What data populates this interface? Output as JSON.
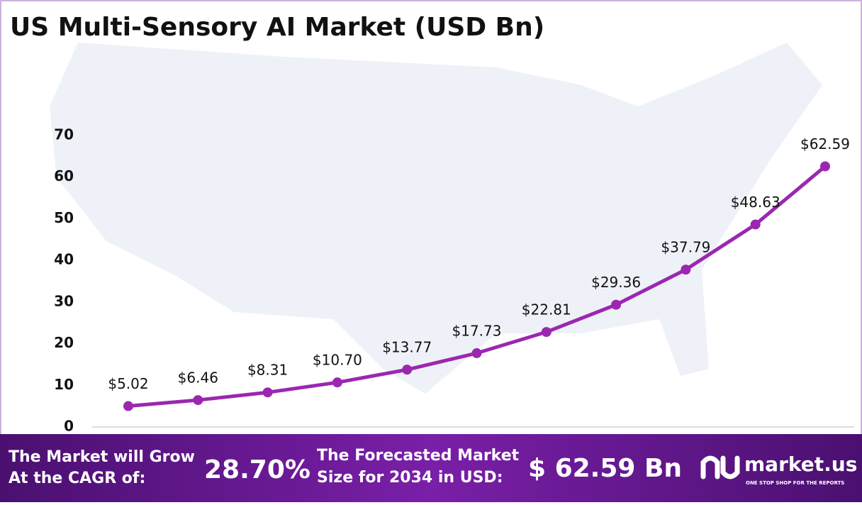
{
  "chart_data": {
    "type": "line",
    "title": "US Multi-Sensory AI Market (USD Bn)",
    "categories": [
      null,
      null,
      null,
      null,
      null,
      null,
      null,
      null,
      null,
      null,
      null
    ],
    "series": [
      {
        "name": null,
        "color": "#9b27b0",
        "values": [
          5.02,
          6.46,
          8.31,
          10.7,
          13.77,
          17.73,
          22.81,
          29.36,
          37.79,
          48.63,
          62.59
        ],
        "value_labels": [
          "$5.02",
          "$6.46",
          "$8.31",
          "$10.70",
          "$13.77",
          "$17.73",
          "$22.81",
          "$29.36",
          "$37.79",
          "$48.63",
          "$62.59"
        ]
      }
    ],
    "ylim": [
      0,
      70
    ],
    "yticks": [
      0,
      10,
      20,
      30,
      40,
      50,
      60,
      70
    ],
    "grid": false
  },
  "footer": {
    "cagr_text": [
      "The Market will Grow",
      "At the CAGR of:"
    ],
    "cagr_value": "28.70%",
    "forecast_text": [
      "The Forecasted Market",
      "Size for 2034 in USD:"
    ],
    "forecast_value": "$ 62.59 Bn",
    "brand": "market.us",
    "tagline": "ONE STOP SHOP FOR THE REPORTS"
  }
}
